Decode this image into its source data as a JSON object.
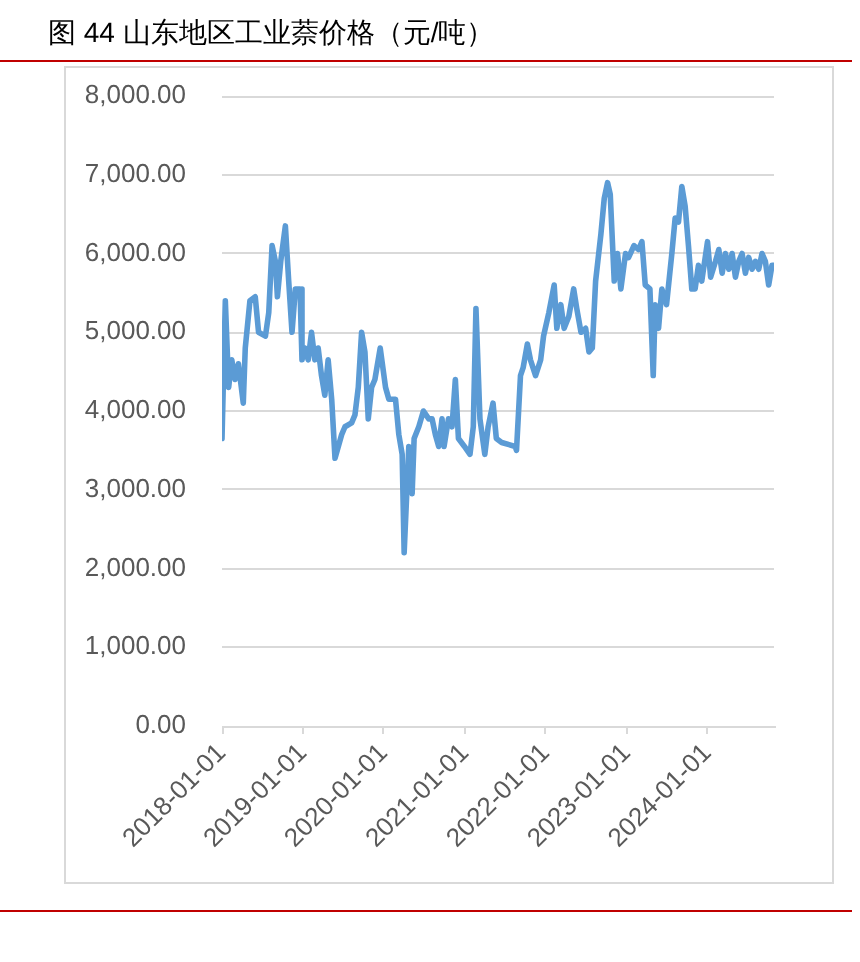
{
  "chart_data": {
    "type": "line",
    "title": "图 44 山东地区工业萘价格（元/吨）",
    "color": "#5b9bd5",
    "grid": "y",
    "x": [
      "2018-01-01",
      "2018-01-16",
      "2018-01-31",
      "2018-02-14",
      "2018-03-01",
      "2018-03-16",
      "2018-04-07",
      "2018-04-16",
      "2018-05-07",
      "2018-05-31",
      "2018-06-15",
      "2018-07-16",
      "2018-07-31",
      "2018-08-15",
      "2018-08-30",
      "2018-09-08",
      "2018-09-23",
      "2018-10-14",
      "2018-10-29",
      "2018-11-13",
      "2018-11-28",
      "2018-12-19",
      "2018-12-28",
      "2019-01-10",
      "2019-01-25",
      "2019-02-09",
      "2019-02-24",
      "2019-03-11",
      "2019-03-26",
      "2019-04-10",
      "2019-04-25",
      "2019-05-11",
      "2019-05-26",
      "2019-06-25",
      "2019-07-10",
      "2019-08-09",
      "2019-08-24",
      "2019-09-08",
      "2019-09-23",
      "2019-10-08",
      "2019-10-23",
      "2019-11-07",
      "2019-11-22",
      "2019-12-16",
      "2020-01-09",
      "2020-01-24",
      "2020-02-23",
      "2020-03-09",
      "2020-03-24",
      "2020-04-02",
      "2020-04-23",
      "2020-05-08",
      "2020-05-17",
      "2020-06-07",
      "2020-06-28",
      "2020-07-22",
      "2020-08-06",
      "2020-08-21",
      "2020-09-05",
      "2020-09-20",
      "2020-09-29",
      "2020-10-19",
      "2020-11-04",
      "2020-11-19",
      "2020-12-03",
      "2020-12-30",
      "2021-01-24",
      "2021-02-08",
      "2021-02-20",
      "2021-03-10",
      "2021-04-01",
      "2021-04-16",
      "2021-05-08",
      "2021-05-23",
      "2021-06-16",
      "2021-08-16",
      "2021-08-22",
      "2021-09-09",
      "2021-09-21",
      "2021-10-10",
      "2021-10-24",
      "2021-11-16",
      "2021-12-09",
      "2021-12-22",
      "2022-01-15",
      "2022-02-08",
      "2022-02-20",
      "2022-03-10",
      "2022-03-25",
      "2022-04-15",
      "2022-05-07",
      "2022-05-21",
      "2022-06-09",
      "2022-06-30",
      "2022-07-15",
      "2022-07-30",
      "2022-08-14",
      "2022-09-07",
      "2022-09-22",
      "2022-10-07",
      "2022-10-19",
      "2022-11-06",
      "2022-11-21",
      "2022-12-06",
      "2022-12-27",
      "2023-01-10",
      "2023-02-03",
      "2023-02-24",
      "2023-03-11",
      "2023-03-26",
      "2023-04-16",
      "2023-05-01",
      "2023-05-10",
      "2023-05-25",
      "2023-06-09",
      "2023-06-30",
      "2023-07-24",
      "2023-08-08",
      "2023-08-23",
      "2023-09-07",
      "2023-09-22",
      "2023-10-07",
      "2023-10-22",
      "2023-11-06",
      "2023-11-21",
      "2023-12-06",
      "2024-01-01",
      "2024-01-15",
      "2024-02-06",
      "2024-02-21",
      "2024-03-07",
      "2024-03-22",
      "2024-04-06",
      "2024-04-21",
      "2024-05-06",
      "2024-05-21",
      "2024-06-05",
      "2024-06-20",
      "2024-07-05",
      "2024-07-20",
      "2024-08-04",
      "2024-08-19",
      "2024-09-03",
      "2024-09-18",
      "2024-10-03",
      "2024-10-18",
      "2024-10-27"
    ],
    "values": [
      3650,
      5400,
      4300,
      4650,
      4400,
      4600,
      4100,
      4800,
      5400,
      5450,
      5000,
      4950,
      5250,
      6100,
      5900,
      5450,
      5900,
      6350,
      5650,
      5000,
      5550,
      5550,
      4650,
      4800,
      4650,
      5000,
      4650,
      4800,
      4450,
      4200,
      4650,
      4150,
      3400,
      3700,
      3800,
      3850,
      3950,
      4300,
      5000,
      4750,
      3900,
      4300,
      4400,
      4800,
      4300,
      4150,
      4150,
      3700,
      3450,
      2200,
      3550,
      2950,
      3650,
      3800,
      4000,
      3900,
      3900,
      3700,
      3550,
      3900,
      3550,
      3900,
      3800,
      4400,
      3650,
      3550,
      3450,
      3800,
      5300,
      3900,
      3450,
      3800,
      4100,
      3650,
      3600,
      3550,
      3500,
      4450,
      4550,
      4850,
      4650,
      4450,
      4650,
      4950,
      5250,
      5600,
      5050,
      5350,
      5050,
      5200,
      5550,
      5300,
      5000,
      5050,
      4750,
      4800,
      5650,
      6250,
      6700,
      6900,
      6750,
      5650,
      6000,
      5550,
      6000,
      5950,
      6100,
      6050,
      6150,
      5600,
      5550,
      4450,
      5350,
      5050,
      5550,
      5350,
      6000,
      6450,
      6400,
      6850,
      6600,
      6100,
      5550,
      5550,
      5850,
      5650,
      6150,
      5700,
      5900,
      6050,
      5750,
      6000,
      5800,
      6000,
      5700,
      5900,
      6000,
      5750,
      5950,
      5800,
      5900,
      5800,
      6000,
      5900,
      5600,
      5850,
      5850
    ],
    "xlim": [
      "2018-01-01",
      "2024-10-27"
    ],
    "xticks": [
      "2018-01-01",
      "2019-01-01",
      "2020-01-01",
      "2021-01-01",
      "2022-01-01",
      "2023-01-01",
      "2024-01-01"
    ],
    "ylim": [
      0,
      8000
    ],
    "yticks": [
      {
        "value": 0,
        "label": "0.00"
      },
      {
        "value": 1000,
        "label": "1,000.00"
      },
      {
        "value": 2000,
        "label": "2,000.00"
      },
      {
        "value": 3000,
        "label": "3,000.00"
      },
      {
        "value": 4000,
        "label": "4,000.00"
      },
      {
        "value": 5000,
        "label": "5,000.00"
      },
      {
        "value": 6000,
        "label": "6,000.00"
      },
      {
        "value": 7000,
        "label": "7,000.00"
      },
      {
        "value": 8000,
        "label": "8,000.00"
      }
    ]
  }
}
